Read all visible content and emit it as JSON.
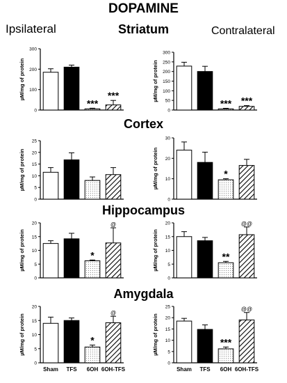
{
  "figure": {
    "title": "DOPAMINE",
    "ipsilateral_label": "Ipsilateral",
    "contralateral_label": "Contralateral",
    "regions": [
      "Striatum",
      "Cortex",
      "Hippocampus",
      "Amygdala"
    ],
    "groups": [
      "Sham",
      "TFS",
      "6OH",
      "6OH-TFS"
    ],
    "colors": {
      "sham": "#ffffff",
      "tfs": "#000000",
      "ohda": "#f2f2f2",
      "ohda_tfs": "hatched"
    }
  },
  "chart_data": [
    {
      "type": "bar",
      "region": "Striatum",
      "side": "Ipsilateral",
      "categories": [
        "Sham",
        "TFS",
        "6OH",
        "6OH-TFS"
      ],
      "values": [
        185,
        210,
        6,
        25
      ],
      "errors": [
        17,
        10,
        3,
        22
      ],
      "annotations": [
        "",
        "",
        "***",
        "***"
      ],
      "ylabel": "µM/mg of protein",
      "ylim": [
        0,
        300
      ],
      "yticks": [
        0,
        100,
        200,
        300
      ],
      "show_xticks": false
    },
    {
      "type": "bar",
      "region": "Striatum",
      "side": "Contralateral",
      "categories": [
        "Sham",
        "TFS",
        "6OH",
        "6OH-TFS"
      ],
      "values": [
        228,
        200,
        6,
        19
      ],
      "errors": [
        20,
        27,
        3,
        4
      ],
      "annotations": [
        "",
        "",
        "***",
        "***"
      ],
      "ylabel": "µM/mg of protein",
      "ylim": [
        0,
        300
      ],
      "yticks": [
        0,
        50,
        100,
        150,
        200,
        250,
        300
      ],
      "show_xticks": false
    },
    {
      "type": "bar",
      "region": "Cortex",
      "side": "Ipsilateral",
      "categories": [
        "Sham",
        "TFS",
        "6OH",
        "6OH-TFS"
      ],
      "values": [
        11.5,
        16.8,
        8,
        10.5
      ],
      "errors": [
        2,
        3,
        1.5,
        3
      ],
      "annotations": [
        "",
        "",
        "",
        ""
      ],
      "ylabel": "µM/mg of protein",
      "ylim": [
        0,
        25
      ],
      "yticks": [
        0,
        5,
        10,
        15,
        20,
        25
      ],
      "show_xticks": false
    },
    {
      "type": "bar",
      "region": "Cortex",
      "side": "Contralateral",
      "categories": [
        "Sham",
        "TFS",
        "6OH",
        "6OH-TFS"
      ],
      "values": [
        24,
        18,
        9.5,
        16.5
      ],
      "errors": [
        4,
        5,
        0.5,
        3
      ],
      "annotations": [
        "",
        "",
        "*",
        ""
      ],
      "ylabel": "µM/mg of protein",
      "ylim": [
        0,
        30
      ],
      "yticks": [
        0,
        10,
        20,
        30
      ],
      "show_xticks": false
    },
    {
      "type": "bar",
      "region": "Hippocampus",
      "side": "Ipsilateral",
      "categories": [
        "Sham",
        "TFS",
        "6OH",
        "6OH-TFS"
      ],
      "values": [
        12.5,
        14.2,
        6.2,
        12.7
      ],
      "errors": [
        1,
        2,
        0.3,
        5.5
      ],
      "annotations": [
        "",
        "",
        "*",
        "@"
      ],
      "ylabel": "µM/mg of protein",
      "ylim": [
        0,
        20
      ],
      "yticks": [
        0,
        5,
        10,
        15,
        20
      ],
      "show_xticks": false
    },
    {
      "type": "bar",
      "region": "Hippocampus",
      "side": "Contralateral",
      "categories": [
        "Sham",
        "TFS",
        "6OH",
        "6OH-TFS"
      ],
      "values": [
        15,
        13.5,
        5.5,
        15.7
      ],
      "errors": [
        1.8,
        1.2,
        0.5,
        2.8
      ],
      "annotations": [
        "",
        "",
        "**",
        "@@"
      ],
      "ylabel": "µM/mg of protein",
      "ylim": [
        0,
        20
      ],
      "yticks": [
        0,
        5,
        10,
        15,
        20
      ],
      "show_xticks": false
    },
    {
      "type": "bar",
      "region": "Amygdala",
      "side": "Ipsilateral",
      "categories": [
        "Sham",
        "TFS",
        "6OH",
        "6OH-TFS"
      ],
      "values": [
        14,
        15,
        5.6,
        14.2
      ],
      "errors": [
        2.2,
        0.9,
        0.7,
        2.3
      ],
      "annotations": [
        "",
        "",
        "*",
        "@"
      ],
      "ylabel": "µM/mg of protein",
      "ylim": [
        0,
        20
      ],
      "yticks": [
        0,
        5,
        10,
        15,
        20
      ],
      "show_xticks": true
    },
    {
      "type": "bar",
      "region": "Amygdala",
      "side": "Contralateral",
      "categories": [
        "Sham",
        "TFS",
        "6OH",
        "6OH-TFS"
      ],
      "values": [
        18.5,
        14.8,
        6.2,
        19
      ],
      "errors": [
        1.2,
        2,
        0.8,
        3.3
      ],
      "annotations": [
        "",
        "",
        "***",
        "@@"
      ],
      "ylabel": "µM/mg of protein",
      "ylim": [
        0,
        25
      ],
      "yticks": [
        0,
        5,
        10,
        15,
        20,
        25
      ],
      "show_xticks": true
    }
  ]
}
